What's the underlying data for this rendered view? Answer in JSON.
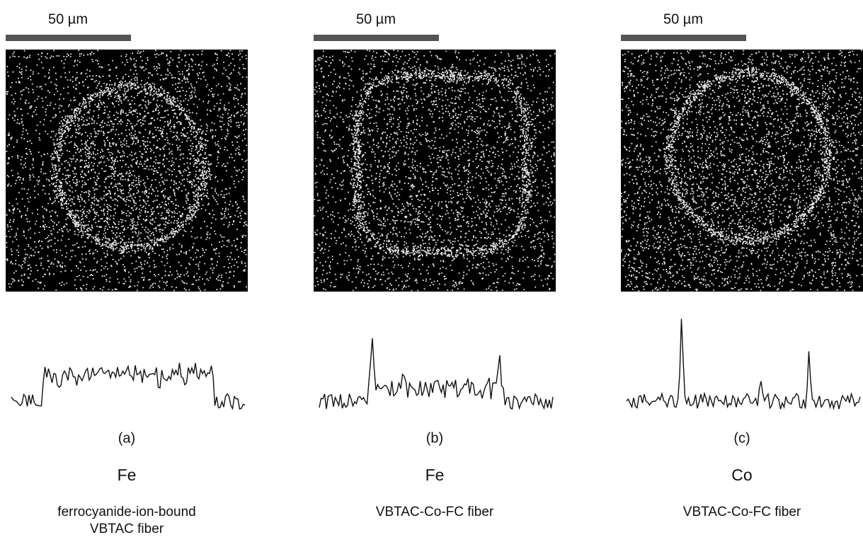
{
  "panels": [
    {
      "scale_label": "50 µm",
      "label": "(a)",
      "element": "Fe",
      "description": [
        "ferrocyanide-ion-bound",
        "VBTAC fiber"
      ]
    },
    {
      "scale_label": "50 µm",
      "label": "(b)",
      "element": "Fe",
      "description": [
        "VBTAC-Co-FC fiber"
      ]
    },
    {
      "scale_label": "50 µm",
      "label": "(c)",
      "element": "Co",
      "description": [
        "VBTAC-Co-FC fiber"
      ]
    }
  ]
}
